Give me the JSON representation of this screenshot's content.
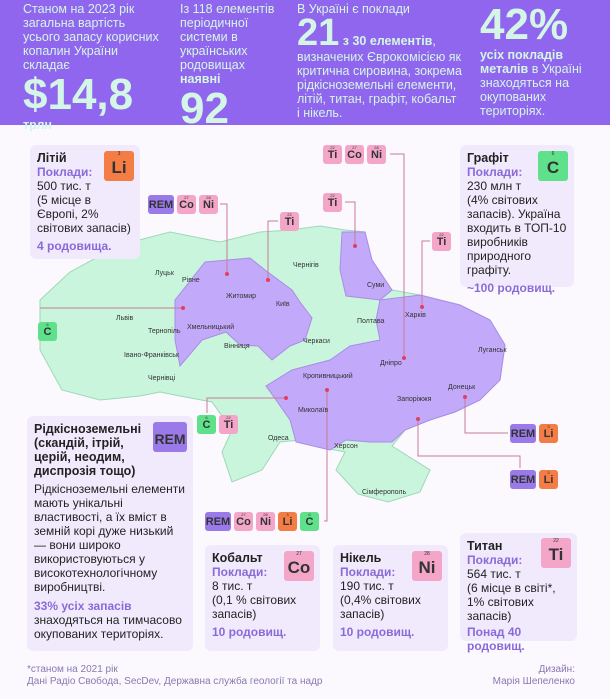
{
  "header": {
    "stat1": {
      "text": "Станом на 2023 рік загальна вартість усього запасу корисних копалин України складає",
      "value": "$14,8",
      "unit": "трлн"
    },
    "stat2": {
      "text": "Із 118 елементів періодичної системи в українських родовищах",
      "bold": "наявні",
      "value": "92"
    },
    "stat3": {
      "intro": "В Україні є поклади",
      "value": "21",
      "bold": "з 30 елементів",
      "rest": ", визначених Єврокомісією як критична сировина, зокрема рідкісноземельні елементи, літій, титан, графіт, кобальт і нікель."
    },
    "stat4": {
      "value": "42%",
      "bold1": "усіх покладів",
      "bold2": "металів",
      "rest": " в Україні знаходяться на окупованих територіях."
    }
  },
  "colors": {
    "header": "#9166ef",
    "panel": "#f1eafd",
    "accent": "#8a6ad8",
    "Li": "#f47c45",
    "C": "#5fe08a",
    "Ti": "#f4a6c8",
    "Co": "#f4a6c8",
    "Ni": "#f4a6c8",
    "REM": "#9a7ae8",
    "region_plain": "#c9f5dd",
    "region_occupied": "#c3a9f9"
  },
  "elements": {
    "Li": "3",
    "C": "6",
    "Ti": "22",
    "Co": "27",
    "Ni": "28",
    "REM": ""
  },
  "panels": {
    "lithium": {
      "title": "Літій",
      "symbol": "Li",
      "label": "Поклади:",
      "amount": "500 тис. т",
      "detail": "(5 місце в Європі, 2% світових запасів)",
      "deposits": "4 родовища."
    },
    "graphite": {
      "title": "Графіт",
      "symbol": "C",
      "label": "Поклади:",
      "amount": "230 млн т",
      "detail": "(4% світових запасів). Україна входить в ТОП-10 виробників природного графіту.",
      "deposits": "~100 родовищ."
    },
    "rem": {
      "title": "Рідкісноземельні (скандій, ітрій, церій, неодим, диспрозія тощо)",
      "symbol": "REM",
      "text": "Рідкісноземельні елементи мають унікальні властивості, а їх вміст в земній корі дуже низький — вони широко використовуються у високотехнологічному виробництві.",
      "highlight": "33% усіх запасів",
      "rest": " знаходяться на тимчасово окупованих територіях."
    },
    "cobalt": {
      "title": "Кобальт",
      "symbol": "Co",
      "label": "Поклади:",
      "amount": "8 тис. т",
      "detail": "(0,1 % світових запасів)",
      "deposits": "10 родовищ."
    },
    "nickel": {
      "title": "Нікель",
      "symbol": "Ni",
      "label": "Поклади:",
      "amount": "190 тис. т",
      "detail": "(0,4% світових запасів)",
      "deposits": "10 родовищ."
    },
    "titan": {
      "title": "Титан",
      "symbol": "Ti",
      "label": "Поклади:",
      "amount": "564 тис. т",
      "detail": "(6 місце в світі*, 1% світових запасів)",
      "deposits": "Понад 40 родовищ."
    }
  },
  "cities": [
    "Луцьк",
    "Рівне",
    "Житомир",
    "Київ",
    "Чернігів",
    "Суми",
    "Харків",
    "Полтава",
    "Черкаси",
    "Вінниця",
    "Хмельницький",
    "Тернопіль",
    "Львів",
    "Івано-Франківськ",
    "Чернівці",
    "Дніпро",
    "Кропивницький",
    "Запоріжжя",
    "Миколаїв",
    "Одеса",
    "Херсон",
    "Сімферополь",
    "Донецьк",
    "Луганськ"
  ],
  "map_groups": [
    [
      "REM",
      "Co",
      "Ni"
    ],
    [
      "Ti",
      "Co",
      "Ni"
    ],
    [
      "Ti"
    ],
    [
      "Ti"
    ],
    [
      "Ti"
    ],
    [
      "C"
    ],
    [
      "C",
      "Ti"
    ],
    [
      "REM",
      "Co",
      "Ni",
      "Li",
      "C"
    ],
    [
      "REM",
      "Li"
    ],
    [
      "REM",
      "Li"
    ]
  ],
  "footer": {
    "note": "*станом на 2021 рік",
    "sources": "Дані Радіо Свобода, SecDev, Державна служба геології та надр",
    "design_label": "Дизайн:",
    "designer": "Марія Шепеленко"
  }
}
